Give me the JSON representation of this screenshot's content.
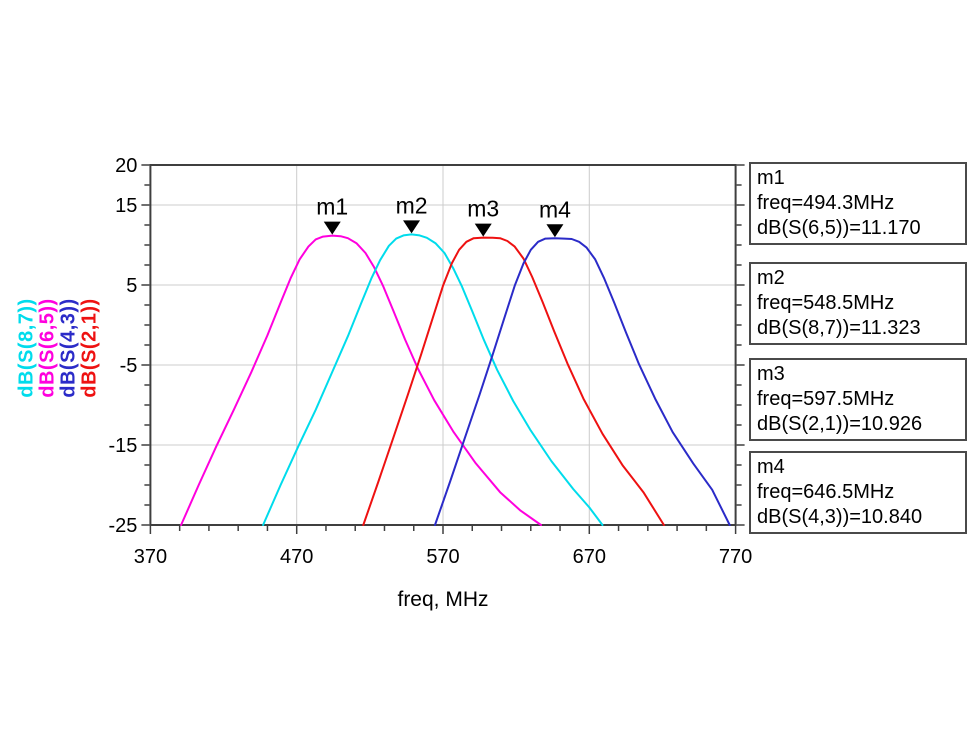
{
  "chart_data": {
    "type": "line",
    "title": "",
    "xlabel": "freq, MHz",
    "ylabel_stack": "dB(S(8,7)) dB(S(6,5)) dB(S(4,3)) dB(S(2,1))",
    "x_axis": {
      "min": 370,
      "max": 770,
      "major_ticks": [
        370,
        470,
        570,
        670,
        770
      ],
      "tick_labels": [
        "370",
        "470",
        "570",
        "670",
        "770"
      ],
      "minor_step": 20,
      "gridlines": [
        470,
        570,
        670
      ]
    },
    "y_axis": {
      "min": -25,
      "max": 20,
      "major_ticks": [
        20,
        15,
        5,
        -5,
        -15,
        -25
      ],
      "tick_labels": [
        "20",
        "15",
        "5",
        "-5",
        "-15",
        "-25"
      ],
      "minor_step": 2.5,
      "gridlines": [
        15,
        5,
        -5,
        -15
      ]
    },
    "grid_on": true,
    "grid_color": "#cccccc",
    "axis_color": "#3f3f3f",
    "marker_color": "#000000",
    "background_color": "#ffffff",
    "series_labels": [
      {
        "text": "dB(S(8,7))",
        "color": "#00dcec"
      },
      {
        "text": "dB(S(6,5))",
        "color": "#ff00de"
      },
      {
        "text": "dB(S(4,3))",
        "color": "#2b2bc8"
      },
      {
        "text": "dB(S(2,1))",
        "color": "#ee1111"
      }
    ],
    "series": [
      {
        "name": "dB(S(6,5))",
        "color": "#ff00de",
        "points": [
          [
            391,
            -25
          ],
          [
            403,
            -20
          ],
          [
            415,
            -15.2
          ],
          [
            427,
            -10.6
          ],
          [
            439,
            -5.9
          ],
          [
            450,
            -1.3
          ],
          [
            459,
            2.8
          ],
          [
            466,
            5.9
          ],
          [
            472,
            8.2
          ],
          [
            478,
            9.8
          ],
          [
            483,
            10.7
          ],
          [
            488,
            11.05
          ],
          [
            494.3,
            11.17
          ],
          [
            500,
            11.1
          ],
          [
            505,
            10.85
          ],
          [
            511,
            10.2
          ],
          [
            517,
            9
          ],
          [
            523,
            7.2
          ],
          [
            529,
            4.9
          ],
          [
            536,
            1.8
          ],
          [
            544,
            -1.8
          ],
          [
            553,
            -5.5
          ],
          [
            564,
            -9.4
          ],
          [
            577,
            -13.3
          ],
          [
            592,
            -17.2
          ],
          [
            609,
            -20.9
          ],
          [
            623,
            -23.2
          ],
          [
            637,
            -25
          ]
        ]
      },
      {
        "name": "dB(S(8,7))",
        "color": "#00dcec",
        "points": [
          [
            447,
            -25
          ],
          [
            459,
            -20
          ],
          [
            471,
            -15.2
          ],
          [
            483,
            -10.6
          ],
          [
            494,
            -6
          ],
          [
            505,
            -1.4
          ],
          [
            514,
            2.7
          ],
          [
            521,
            5.8
          ],
          [
            527,
            8.1
          ],
          [
            533,
            9.9
          ],
          [
            538,
            10.8
          ],
          [
            543,
            11.2
          ],
          [
            548.5,
            11.32
          ],
          [
            554,
            11.2
          ],
          [
            559,
            10.9
          ],
          [
            565,
            10.2
          ],
          [
            571,
            9
          ],
          [
            577,
            7.1
          ],
          [
            583,
            4.8
          ],
          [
            590,
            1.7
          ],
          [
            598,
            -1.9
          ],
          [
            607,
            -5.6
          ],
          [
            618,
            -9.5
          ],
          [
            630,
            -13.2
          ],
          [
            644,
            -17
          ],
          [
            659,
            -20.5
          ],
          [
            670,
            -22.8
          ],
          [
            679,
            -25
          ]
        ]
      },
      {
        "name": "dB(S(2,1))",
        "color": "#ee1111",
        "points": [
          [
            515.5,
            -25
          ],
          [
            526,
            -19.5
          ],
          [
            536,
            -14.1
          ],
          [
            546,
            -8.7
          ],
          [
            555,
            -3.7
          ],
          [
            563,
            0.9
          ],
          [
            570,
            4.9
          ],
          [
            576,
            7.7
          ],
          [
            581,
            9.4
          ],
          [
            586,
            10.4
          ],
          [
            591,
            10.85
          ],
          [
            597.5,
            10.93
          ],
          [
            604,
            10.9
          ],
          [
            609,
            10.85
          ],
          [
            614,
            10.5
          ],
          [
            619,
            9.8
          ],
          [
            625,
            8.3
          ],
          [
            631,
            6
          ],
          [
            638,
            2.9
          ],
          [
            646,
            -0.8
          ],
          [
            655,
            -4.8
          ],
          [
            666,
            -9.2
          ],
          [
            679,
            -13.6
          ],
          [
            693,
            -17.6
          ],
          [
            707,
            -20.9
          ],
          [
            721,
            -25
          ]
        ]
      },
      {
        "name": "dB(S(4,3))",
        "color": "#2b2bc8",
        "points": [
          [
            564.5,
            -25
          ],
          [
            575,
            -19.5
          ],
          [
            585,
            -14.1
          ],
          [
            595,
            -8.7
          ],
          [
            604,
            -3.7
          ],
          [
            612,
            0.9
          ],
          [
            619,
            4.9
          ],
          [
            625,
            7.7
          ],
          [
            630,
            9.4
          ],
          [
            635,
            10.4
          ],
          [
            640,
            10.8
          ],
          [
            646.5,
            10.84
          ],
          [
            653,
            10.8
          ],
          [
            658,
            10.75
          ],
          [
            663,
            10.4
          ],
          [
            668,
            9.7
          ],
          [
            674,
            8.2
          ],
          [
            680,
            5.9
          ],
          [
            687,
            2.8
          ],
          [
            695,
            -0.9
          ],
          [
            704,
            -4.9
          ],
          [
            715,
            -9.2
          ],
          [
            727,
            -13.4
          ],
          [
            741,
            -17.3
          ],
          [
            754,
            -20.6
          ],
          [
            766,
            -25
          ]
        ]
      }
    ],
    "markers": [
      {
        "label": "m1",
        "freq": 494.3,
        "db": 11.17
      },
      {
        "label": "m2",
        "freq": 548.5,
        "db": 11.323
      },
      {
        "label": "m3",
        "freq": 597.5,
        "db": 10.926
      },
      {
        "label": "m4",
        "freq": 646.5,
        "db": 10.84
      }
    ],
    "marker_boxes": [
      {
        "name": "m1",
        "freq_text": "freq=494.3MHz",
        "value_text": "dB(S(6,5))=11.170"
      },
      {
        "name": "m2",
        "freq_text": "freq=548.5MHz",
        "value_text": "dB(S(8,7))=11.323"
      },
      {
        "name": "m3",
        "freq_text": "freq=597.5MHz",
        "value_text": "dB(S(2,1))=10.926"
      },
      {
        "name": "m4",
        "freq_text": "freq=646.5MHz",
        "value_text": "dB(S(4,3))=10.840"
      }
    ]
  }
}
